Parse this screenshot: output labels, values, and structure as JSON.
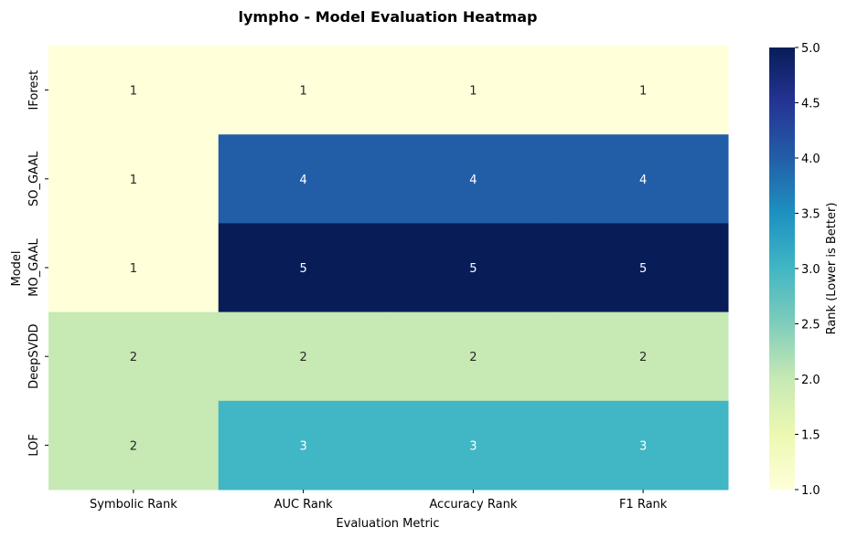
{
  "chart_data": {
    "type": "heatmap",
    "title": "lympho - Model Evaluation Heatmap",
    "xlabel": "Evaluation Metric",
    "ylabel": "Model",
    "columns": [
      "Symbolic Rank",
      "AUC Rank",
      "Accuracy Rank",
      "F1 Rank"
    ],
    "rows": [
      "IForest",
      "SO_GAAL",
      "MO_GAAL",
      "DeepSVDD",
      "LOF"
    ],
    "values": [
      [
        1,
        1,
        1,
        1
      ],
      [
        1,
        4,
        4,
        4
      ],
      [
        1,
        5,
        5,
        5
      ],
      [
        2,
        2,
        2,
        2
      ],
      [
        2,
        3,
        3,
        3
      ]
    ],
    "colorbar": {
      "label": "Rank (Lower is Better)",
      "range": [
        1.0,
        5.0
      ],
      "ticks": [
        "1.0",
        "1.5",
        "2.0",
        "2.5",
        "3.0",
        "3.5",
        "4.0",
        "4.5",
        "5.0"
      ],
      "colormap": "YlGnBu"
    },
    "cell_colors": {
      "1": "#ffffd9",
      "2": "#c7e9b4",
      "3": "#41b6c4",
      "4": "#225ea8",
      "5": "#081d58"
    }
  }
}
